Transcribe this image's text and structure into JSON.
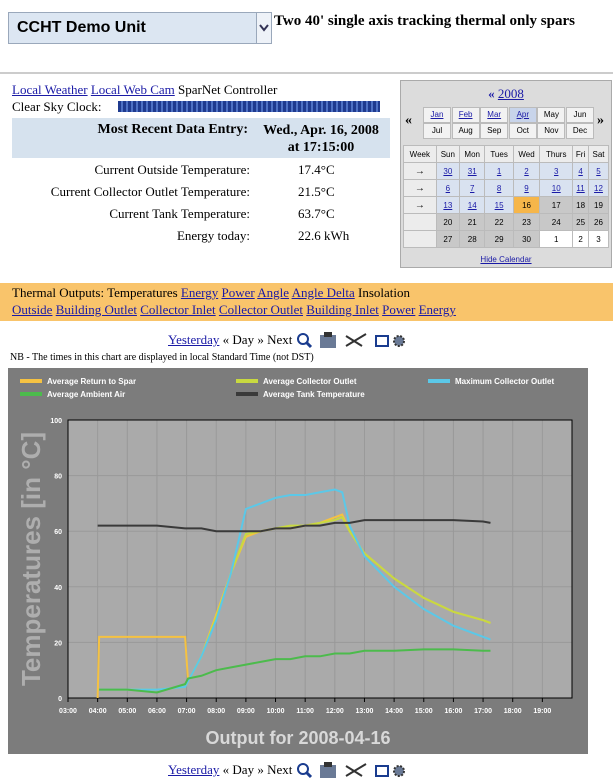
{
  "header": {
    "unit": "CCHT Demo Unit",
    "description": "Two 40' single axis tracking thermal only spars"
  },
  "links": [
    "Local Weather",
    "Local Web Cam"
  ],
  "controller": "SparNet Controller",
  "clock_label": "Clear Sky Clock:",
  "data_entry": {
    "label": "Most Recent Data Entry:",
    "date": "Wed., Apr. 16, 2008",
    "time": "at 17:15:00"
  },
  "readings": [
    {
      "label": "Current Outside Temperature:",
      "value": "17.4°C"
    },
    {
      "label": "Current Collector Outlet Temperature:",
      "value": "21.5°C"
    },
    {
      "label": "Current Tank Temperature:",
      "value": "63.7°C"
    },
    {
      "label": "Energy today:",
      "value": "22.6 kWh"
    }
  ],
  "calendar": {
    "prev": "«",
    "year": "2008",
    "prev_month": "«",
    "next_month": "»",
    "months": [
      "Jan",
      "Feb",
      "Mar",
      "Apr",
      "May",
      "Jun",
      "Jul",
      "Aug",
      "Sep",
      "Oct",
      "Nov",
      "Dec"
    ],
    "weekdays": [
      "Week",
      "Sun",
      "Mon",
      "Tues",
      "Wed",
      "Thurs",
      "Fri",
      "Sat"
    ],
    "week_arrows": [
      "→",
      "→",
      "→"
    ],
    "weeks": [
      [
        "30",
        "31",
        "1",
        "2",
        "3",
        "4",
        "5"
      ],
      [
        "6",
        "7",
        "8",
        "9",
        "10",
        "11",
        "12"
      ],
      [
        "13",
        "14",
        "15",
        "16",
        "17",
        "18",
        "19"
      ],
      [
        "20",
        "21",
        "22",
        "23",
        "24",
        "25",
        "26"
      ],
      [
        "27",
        "28",
        "29",
        "30",
        "1",
        "2",
        "3"
      ]
    ],
    "hide": "Hide Calendar"
  },
  "outputs": {
    "label": "Thermal Outputs:",
    "primary": [
      "Temperatures",
      "Energy",
      "Power",
      "Angle",
      "Angle Delta",
      "Insolation"
    ],
    "secondary": [
      "Outside",
      "Building Outlet",
      "Collector Inlet",
      "Collector Outlet",
      "Building Inlet",
      "Power",
      "Energy"
    ]
  },
  "nav": {
    "prev": "Yesterday",
    "day": "« Day »",
    "next": "Next"
  },
  "note": "NB - The times in this chart are displayed in local Standard Time (not DST)",
  "chart_data": {
    "type": "line",
    "title": "Output for 2008-04-16",
    "y_label": "Temperatures [in °C]",
    "x": [
      4,
      4.05,
      5,
      6,
      6.95,
      7.05,
      7.5,
      8,
      8.5,
      9,
      9.5,
      10,
      10.5,
      11,
      11.5,
      12,
      12.25,
      12.5,
      13,
      14,
      15,
      16,
      17,
      17.25
    ],
    "xlim": [
      3,
      20
    ],
    "xticks": [
      {
        "value": 3,
        "label": "03:00"
      },
      {
        "value": 4,
        "label": "04:00"
      },
      {
        "value": 5,
        "label": "05:00"
      },
      {
        "value": 6,
        "label": "06:00"
      },
      {
        "value": 7,
        "label": "07:00"
      },
      {
        "value": 8,
        "label": "08:00"
      },
      {
        "value": 9,
        "label": "09:00"
      },
      {
        "value": 10,
        "label": "10:00"
      },
      {
        "value": 11,
        "label": "11:00"
      },
      {
        "value": 12,
        "label": "12:00"
      },
      {
        "value": 13,
        "label": "13:00"
      },
      {
        "value": 14,
        "label": "14:00"
      },
      {
        "value": 15,
        "label": "15:00"
      },
      {
        "value": 16,
        "label": "16:00"
      },
      {
        "value": 17,
        "label": "17:00"
      },
      {
        "value": 18,
        "label": "18:00"
      },
      {
        "value": 19,
        "label": "19:00"
      }
    ],
    "ylim": [
      0,
      100
    ],
    "yticks": [
      0,
      20,
      40,
      60,
      80,
      100
    ],
    "grid": true,
    "series": [
      {
        "name": "Average Return to Spar",
        "color": "#f5c242",
        "values": [
          0,
          22,
          22,
          22,
          22,
          6,
          15,
          30,
          45,
          58,
          60,
          61,
          61,
          62,
          63,
          65,
          66,
          60,
          52,
          43,
          36,
          31,
          28,
          27
        ]
      },
      {
        "name": "Average Collector Outlet",
        "color": "#c8d940",
        "values": [
          null,
          3,
          3,
          3,
          4,
          6,
          15,
          29,
          45,
          59,
          60,
          61,
          62,
          62,
          63,
          64,
          65,
          60,
          52,
          43,
          36,
          31,
          28,
          27
        ]
      },
      {
        "name": "Maximum Collector Outlet",
        "color": "#5bc8e8",
        "values": [
          null,
          3,
          3,
          3,
          4,
          6,
          15,
          28,
          45,
          68,
          70,
          72,
          73,
          73,
          74,
          75,
          74,
          62,
          51,
          40,
          32,
          26,
          22,
          21
        ]
      },
      {
        "name": "Average Ambient Air",
        "color": "#4cbb4c",
        "values": [
          null,
          3,
          3,
          2,
          5,
          7,
          8,
          10,
          11,
          12,
          13,
          14,
          14,
          15,
          15,
          16,
          16,
          16,
          17,
          17,
          17.5,
          17.5,
          17,
          17
        ]
      },
      {
        "name": "Average Tank Temperature",
        "color": "#3a3a3a",
        "values": [
          62,
          62,
          62,
          62,
          61,
          61,
          61,
          60,
          60,
          60,
          60,
          61,
          61,
          62,
          62,
          63,
          63,
          63,
          64,
          64,
          64,
          64,
          63.5,
          63
        ]
      }
    ]
  }
}
